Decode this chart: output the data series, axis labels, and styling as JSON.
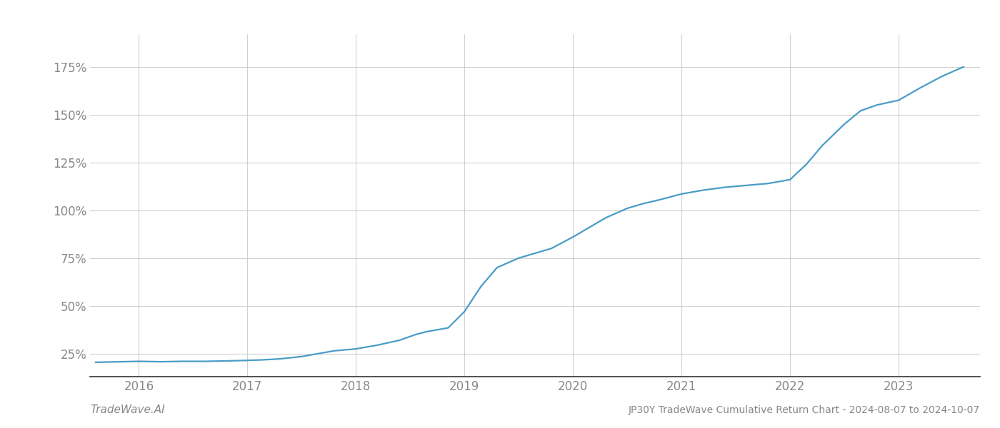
{
  "title": "JP30Y TradeWave Cumulative Return Chart - 2024-08-07 to 2024-10-07",
  "watermark": "TradeWave.AI",
  "line_color": "#4a9cc7",
  "background_color": "#ffffff",
  "grid_color": "#cccccc",
  "x_values": [
    2015.6,
    2016.0,
    2016.2,
    2016.4,
    2016.6,
    2016.8,
    2017.0,
    2017.15,
    2017.3,
    2017.5,
    2017.65,
    2017.8,
    2018.0,
    2018.2,
    2018.4,
    2018.55,
    2018.65,
    2018.75,
    2018.85,
    2019.0,
    2019.15,
    2019.3,
    2019.5,
    2019.65,
    2019.8,
    2020.0,
    2020.15,
    2020.3,
    2020.5,
    2020.65,
    2020.8,
    2021.0,
    2021.2,
    2021.4,
    2021.6,
    2021.8,
    2022.0,
    2022.15,
    2022.3,
    2022.5,
    2022.65,
    2022.8,
    2023.0,
    2023.2,
    2023.4,
    2023.6
  ],
  "y_values": [
    20.5,
    21.0,
    20.8,
    21.0,
    21.0,
    21.2,
    21.5,
    21.8,
    22.3,
    23.5,
    25.0,
    26.5,
    27.5,
    29.5,
    32.0,
    35.0,
    36.5,
    37.5,
    38.5,
    47.0,
    60.0,
    70.0,
    75.0,
    77.5,
    80.0,
    86.0,
    91.0,
    96.0,
    101.0,
    103.5,
    105.5,
    108.5,
    110.5,
    112.0,
    113.0,
    114.0,
    116.0,
    124.0,
    134.0,
    145.0,
    152.0,
    155.0,
    157.5,
    164.0,
    170.0,
    175.0
  ],
  "yticks": [
    25,
    50,
    75,
    100,
    125,
    150,
    175
  ],
  "xticks": [
    2016,
    2017,
    2018,
    2019,
    2020,
    2021,
    2022,
    2023
  ],
  "xlim": [
    2015.55,
    2023.75
  ],
  "ylim": [
    13,
    192
  ],
  "tick_color": "#888888",
  "spine_color": "#888888",
  "title_fontsize": 10,
  "tick_fontsize": 12,
  "watermark_fontsize": 11,
  "line_width": 1.6
}
